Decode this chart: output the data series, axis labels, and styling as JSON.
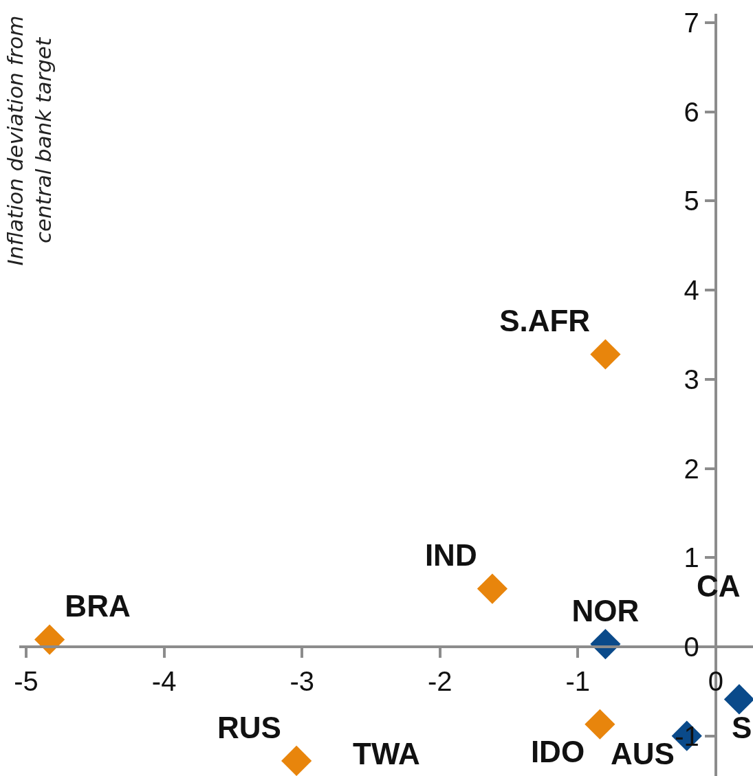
{
  "chart_data": {
    "type": "scatter",
    "ylabel": "Inflation deviation from\ncentral bank target",
    "series": [
      {
        "color": "#e8850c",
        "x": [
          -4.83,
          -1.62,
          -0.8,
          -0.84,
          -3.04
        ],
        "values": [
          0.08,
          0.65,
          3.28,
          -0.87,
          -1.28
        ],
        "value_labels": [
          "BRA",
          "IND",
          "S.AFR",
          "IDO",
          "RUS"
        ]
      },
      {
        "color": "#0a4a8a",
        "x": [
          -0.8,
          -0.21,
          0.17
        ],
        "values": [
          0.03,
          -1.0,
          -0.59
        ],
        "value_labels": [
          "NOR",
          null,
          null
        ]
      }
    ],
    "annotations": [
      "CA",
      "S",
      "TWA",
      "AUS"
    ],
    "xlim": [
      -5.05,
      0.27
    ],
    "ylim": [
      -1.45,
      7.1
    ],
    "xticks": [
      -5,
      -4,
      -3,
      -2,
      -1,
      0
    ],
    "yticks": [
      -1,
      0,
      1,
      2,
      3,
      4,
      5,
      6,
      7
    ],
    "marker": "diamond",
    "grid": false,
    "legend": false
  }
}
